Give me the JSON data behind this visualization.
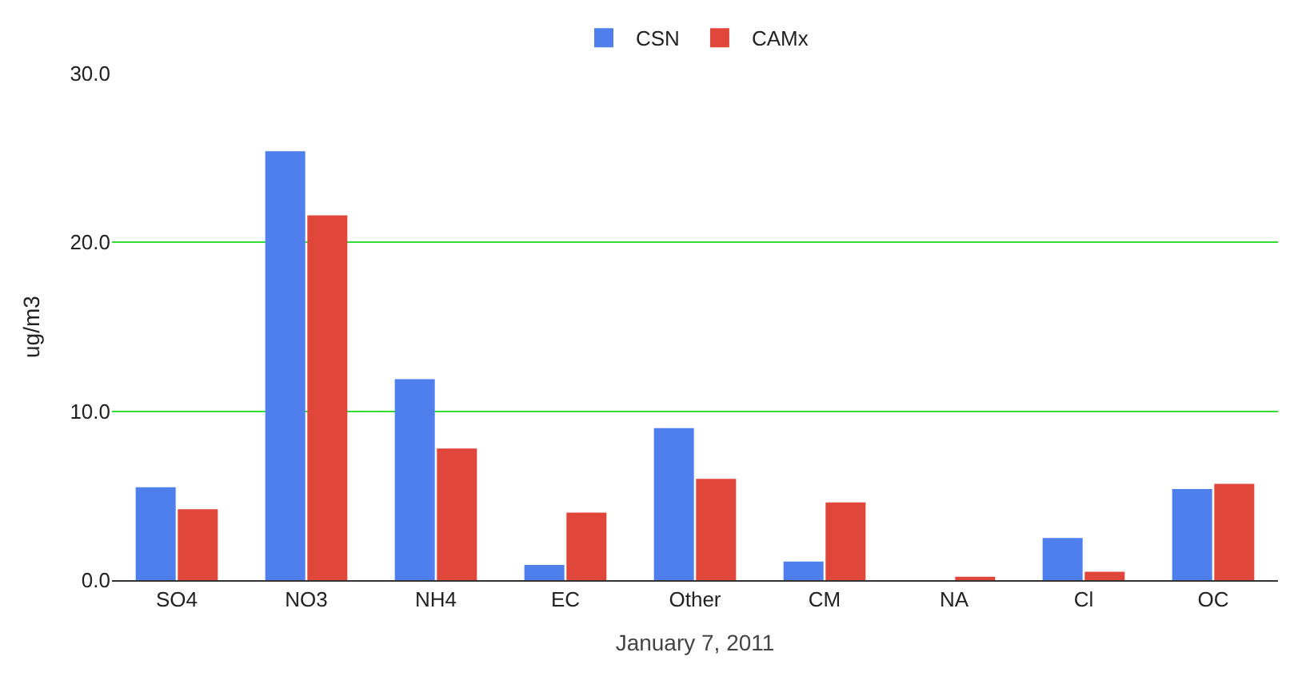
{
  "chart_data": {
    "type": "bar",
    "xlabel": "January 7, 2011",
    "ylabel": "ug/m3",
    "categories": [
      "SO4",
      "NO3",
      "NH4",
      "EC",
      "Other",
      "CM",
      "NA",
      "Cl",
      "OC"
    ],
    "series": [
      {
        "name": "CSN",
        "color": "#4e7fec",
        "values": [
          5.5,
          25.4,
          11.9,
          0.9,
          9.0,
          1.1,
          0.0,
          2.5,
          5.4
        ]
      },
      {
        "name": "CAMx",
        "color": "#e0463a",
        "values": [
          4.2,
          21.6,
          7.8,
          4.0,
          6.0,
          4.6,
          0.2,
          0.5,
          5.7
        ]
      }
    ],
    "ylim": [
      0,
      30
    ],
    "yticks": [
      {
        "value": 0,
        "label": "0.0"
      },
      {
        "value": 10,
        "label": "10.0"
      },
      {
        "value": 20,
        "label": "20.0"
      },
      {
        "value": 30,
        "label": "30.0"
      }
    ],
    "grid": "y",
    "legend": "top"
  }
}
